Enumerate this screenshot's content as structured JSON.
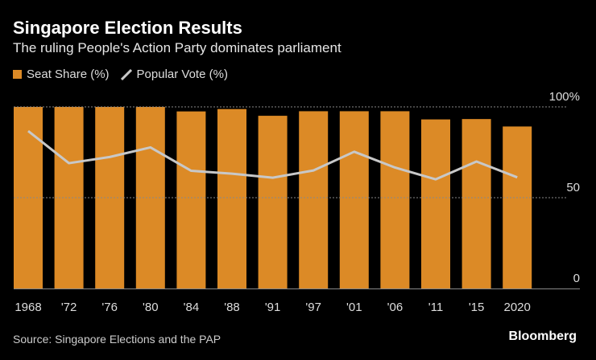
{
  "header": {
    "title": "Singapore Election Results",
    "subtitle": "The ruling People's Action Party dominates parliament"
  },
  "footer": {
    "source": "Source: Singapore Elections and the PAP",
    "brand": "Bloomberg"
  },
  "chart_data": {
    "type": "bar",
    "categories": [
      "1968",
      "'72",
      "'76",
      "'80",
      "'84",
      "'88",
      "'91",
      "'97",
      "'01",
      "'06",
      "'11",
      "'15",
      "2020"
    ],
    "series": [
      {
        "name": "Seat Share (%)",
        "type": "bar",
        "color": "#dc8a26",
        "values": [
          100,
          100,
          100,
          100,
          97.5,
          98.8,
          95.1,
          97.6,
          97.6,
          97.6,
          93.1,
          93.3,
          89.2
        ]
      },
      {
        "name": "Popular Vote (%)",
        "type": "line",
        "color": "#c8c8c8",
        "values": [
          86.7,
          69.0,
          72.4,
          77.7,
          64.8,
          63.2,
          61.0,
          65.0,
          75.3,
          66.6,
          60.1,
          69.9,
          61.2
        ]
      }
    ],
    "yticks": [
      "0",
      "50",
      "100%"
    ],
    "ytick_values": [
      0,
      50,
      100
    ],
    "ylim": [
      0,
      100
    ],
    "grid": true,
    "legend_position": "top-left"
  }
}
